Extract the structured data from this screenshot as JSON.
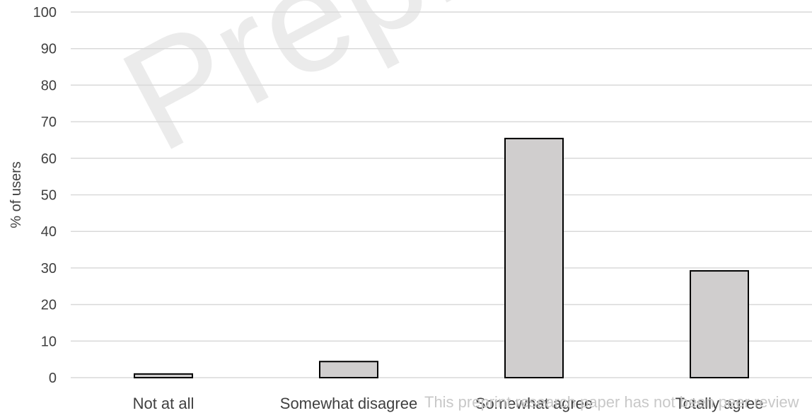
{
  "chart_data": {
    "type": "bar",
    "title": "",
    "xlabel": "",
    "ylabel": "% of users",
    "categories": [
      "Not at all",
      "Somewhat disagree",
      "Somewhat agree",
      "Totally agree"
    ],
    "values": [
      1,
      4.4,
      65.4,
      29.2
    ],
    "ylim": [
      0,
      100
    ],
    "yticks": [
      "0",
      "10",
      "20",
      "30",
      "40",
      "50",
      "60",
      "70",
      "80",
      "90",
      "100"
    ],
    "grid": true,
    "legend": "none",
    "colors": {
      "bar_fill": "#d0cece",
      "bar_stroke": "#000000",
      "grid": "#d9d9d9",
      "text": "#404040"
    }
  },
  "watermark": "Preprint no",
  "footer_note": "This preprint research paper has not been peer review"
}
